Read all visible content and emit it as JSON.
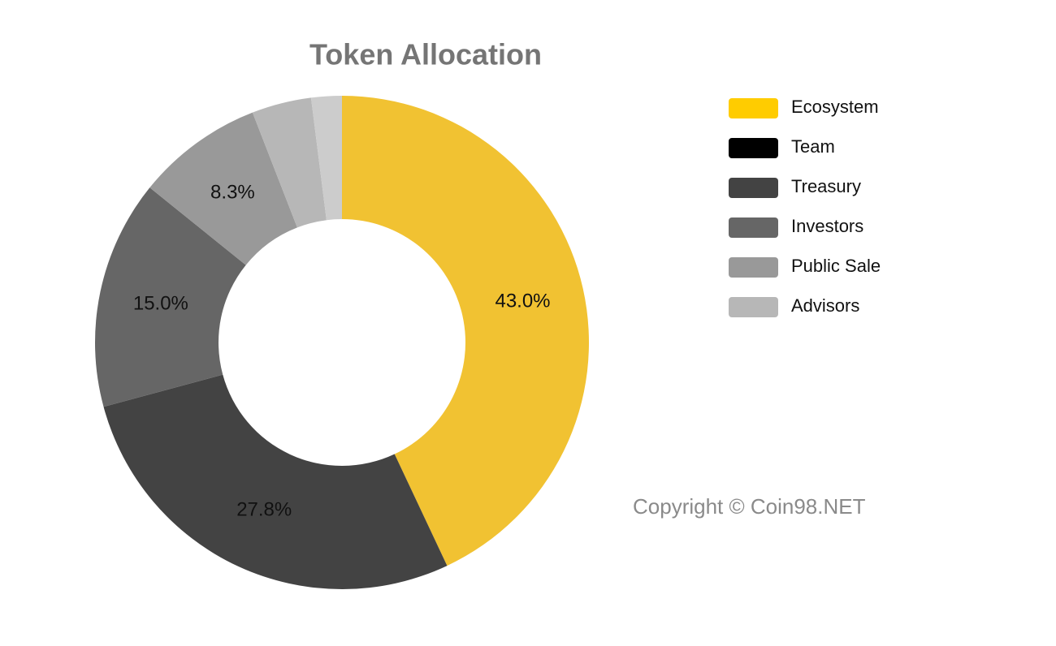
{
  "chart_data": {
    "type": "donut",
    "title": "Token Allocation",
    "categories": [
      "Ecosystem",
      "Team",
      "Treasury",
      "Investors",
      "Public Sale",
      "Advisors",
      null
    ],
    "values": [
      43.0,
      0,
      27.8,
      15.0,
      8.3,
      3.9,
      2.0
    ],
    "value_labels": [
      "43.0%",
      null,
      "27.8%",
      "15.0%",
      "8.3%",
      null,
      null
    ],
    "colors": [
      "#f1c232",
      "#000000",
      "#434343",
      "#666666",
      "#999999",
      "#b7b7b7",
      "#cccccc"
    ],
    "legend_colors": [
      "#ffcc00",
      "#000000",
      "#434343",
      "#666666",
      "#999999",
      "#b7b7b7"
    ],
    "annotation": "Copyright © Coin98.NET"
  }
}
